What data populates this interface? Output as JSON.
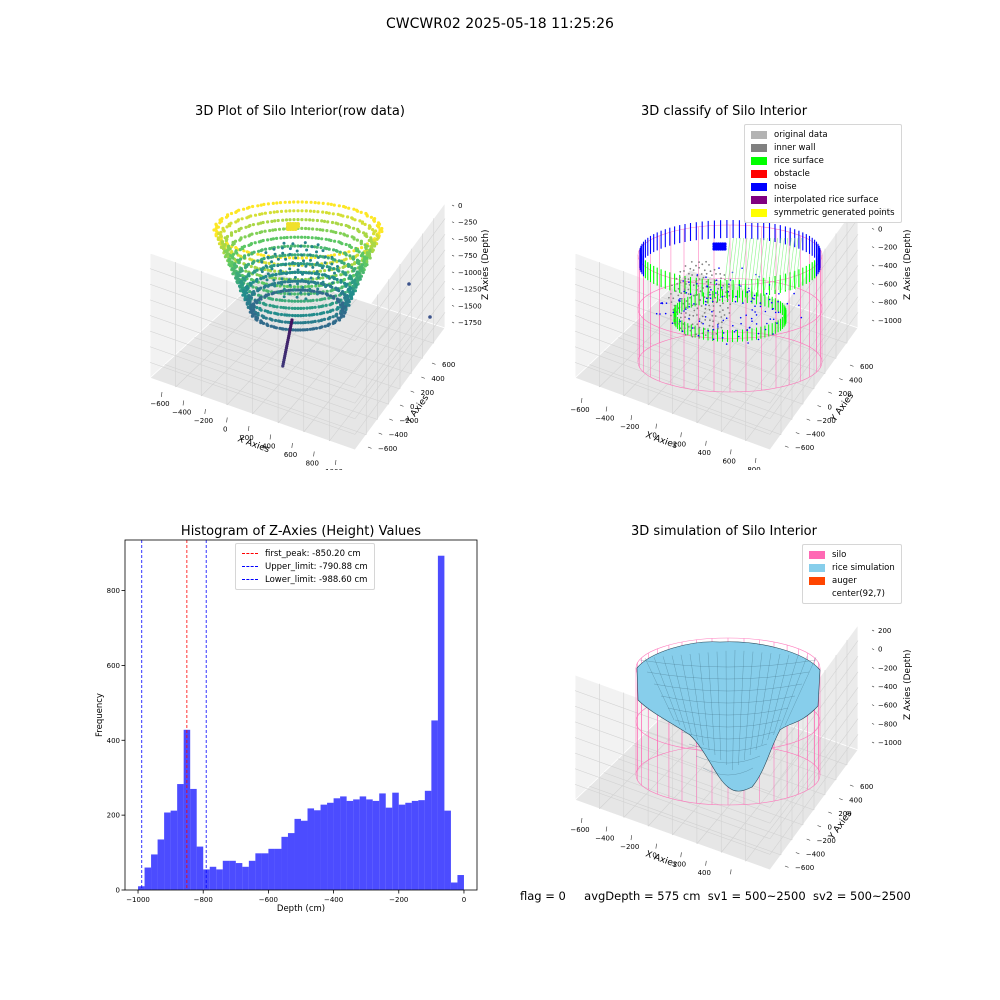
{
  "figure_title": "CWCWR02 2025-05-18 11:25:26",
  "panels": {
    "raw": {
      "title": "3D Plot of Silo Interior(row data)",
      "xlabel": "X Axies",
      "ylabel": "Y Axies",
      "zlabel": "Z Axies (Depth)",
      "xticks": [
        "−600",
        "−400",
        "−200",
        "0",
        "200",
        "400",
        "600",
        "800",
        "1000"
      ],
      "yticks": [
        "−600",
        "−400",
        "−200",
        "0",
        "200",
        "400",
        "600"
      ],
      "zticks": [
        "0",
        "−250",
        "−500",
        "−750",
        "−1000",
        "−1250",
        "−1500",
        "−1750"
      ]
    },
    "classify": {
      "title": "3D classify of Silo Interior",
      "xlabel": "X Axies",
      "ylabel": "Y Axies",
      "zlabel": "Z Axies (Depth)",
      "xticks": [
        "−600",
        "−400",
        "−200",
        "0",
        "200",
        "400",
        "600",
        "800"
      ],
      "yticks": [
        "−600",
        "−400",
        "−200",
        "0",
        "200",
        "400",
        "600"
      ],
      "zticks": [
        "200",
        "0",
        "−200",
        "−400",
        "−600",
        "−800",
        "−1000"
      ],
      "legend": [
        {
          "label": "original data",
          "color": "#b3b3b3"
        },
        {
          "label": "inner wall",
          "color": "#808080"
        },
        {
          "label": "rice surface",
          "color": "#00ff00"
        },
        {
          "label": "obstacle",
          "color": "#ff0000"
        },
        {
          "label": "noise",
          "color": "#0000ff"
        },
        {
          "label": "interpolated rice surface",
          "color": "#800080"
        },
        {
          "label": "symmetric generated points",
          "color": "#ffff00"
        }
      ]
    },
    "simulation": {
      "title": "3D simulation of Silo Interior",
      "xlabel": "X Axies",
      "ylabel": "Y Axies",
      "zlabel": "Z Axies (Depth)",
      "xticks": [
        "−600",
        "−400",
        "−200",
        "0",
        "200",
        "400",
        "600",
        "800"
      ],
      "yticks": [
        "−600",
        "−400",
        "−200",
        "0",
        "200",
        "400",
        "600"
      ],
      "zticks": [
        "200",
        "0",
        "−200",
        "−400",
        "−600",
        "−800",
        "−1000"
      ],
      "legend": [
        {
          "label": "silo",
          "color": "#ff69b4"
        },
        {
          "label": "rice simulation",
          "color": "#87ceeb"
        },
        {
          "label": "auger",
          "color": "#ff4500"
        },
        {
          "label": "center(92,7)",
          "color": "#ffffff"
        }
      ]
    }
  },
  "chart_data": {
    "type": "bar",
    "title": "Histogram of Z-Axies (Height) Values",
    "xlabel": "Depth (cm)",
    "ylabel": "Frequency",
    "xlim": [
      -1040,
      40
    ],
    "ylim": [
      0,
      935
    ],
    "xticks": [
      -1000,
      -800,
      -600,
      -400,
      -200,
      0
    ],
    "xtick_labels": [
      "−1000",
      "−800",
      "−600",
      "−400",
      "−200",
      "0"
    ],
    "yticks": [
      0,
      200,
      400,
      600,
      800
    ],
    "bin_start": -1000,
    "bin_width": 20,
    "values": [
      10,
      60,
      95,
      135,
      207,
      212,
      283,
      428,
      270,
      116,
      55,
      62,
      55,
      78,
      78,
      72,
      62,
      78,
      98,
      98,
      110,
      110,
      142,
      152,
      190,
      185,
      218,
      213,
      228,
      233,
      245,
      250,
      238,
      242,
      250,
      242,
      238,
      258,
      220,
      260,
      228,
      233,
      238,
      240,
      265,
      453,
      893,
      212,
      20,
      40
    ],
    "bar_color": "#0000ff",
    "vlines": [
      {
        "label": "first_peak: -850.20 cm",
        "x": -850.2,
        "color": "#ff0000"
      },
      {
        "label": "Upper_limit: -790.88 cm",
        "x": -790.88,
        "color": "#0000ff"
      },
      {
        "label": "Lower_limit: -988.60 cm",
        "x": -988.6,
        "color": "#0000ff"
      }
    ],
    "grid": false,
    "legend_position": "top-center"
  },
  "status": {
    "flag": "flag = 0",
    "avg": "avgDepth = 575 cm",
    "sv1": "sv1 = 500~2500",
    "sv2": "sv2 = 500~2500"
  }
}
